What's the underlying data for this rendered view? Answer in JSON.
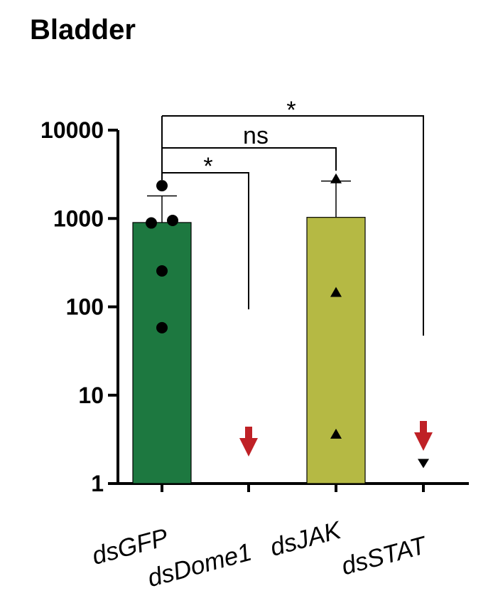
{
  "chart_data": {
    "type": "bar",
    "title": "Bladder",
    "xlabel": "",
    "ylabel": "",
    "y_scale": "log",
    "ylim": [
      1,
      10000
    ],
    "y_ticks": [
      {
        "value": 1,
        "label": "1"
      },
      {
        "value": 10,
        "label": "10"
      },
      {
        "value": 100,
        "label": "100"
      },
      {
        "value": 1000,
        "label": "1000"
      },
      {
        "value": 10000,
        "label": "10000"
      }
    ],
    "categories": [
      "dsGFP",
      "dsDome1",
      "dsJAK",
      "dsSTAT"
    ],
    "bars": [
      {
        "category": "dsGFP",
        "value": 900,
        "error_upper": 1800,
        "color": "#1d7840",
        "points": [
          2350,
          950,
          890,
          255,
          58
        ],
        "marker": "circle"
      },
      {
        "category": "dsDome1",
        "value": null,
        "below_detection": true,
        "points": []
      },
      {
        "category": "dsJAK",
        "value": 1030,
        "error_upper": 2650,
        "color": "#b5b944",
        "points": [
          2800,
          145,
          3.6
        ],
        "marker": "triangle-up"
      },
      {
        "category": "dsSTAT",
        "value": null,
        "below_detection": true,
        "points": [
          1.7
        ],
        "marker": "triangle-down"
      }
    ],
    "arrow_color": "#bf2126",
    "comparisons": [
      {
        "from": "dsGFP",
        "to": "dsDome1",
        "label": "*"
      },
      {
        "from": "dsGFP",
        "to": "dsJAK",
        "label": "ns"
      },
      {
        "from": "dsGFP",
        "to": "dsSTAT",
        "label": "*"
      }
    ]
  }
}
